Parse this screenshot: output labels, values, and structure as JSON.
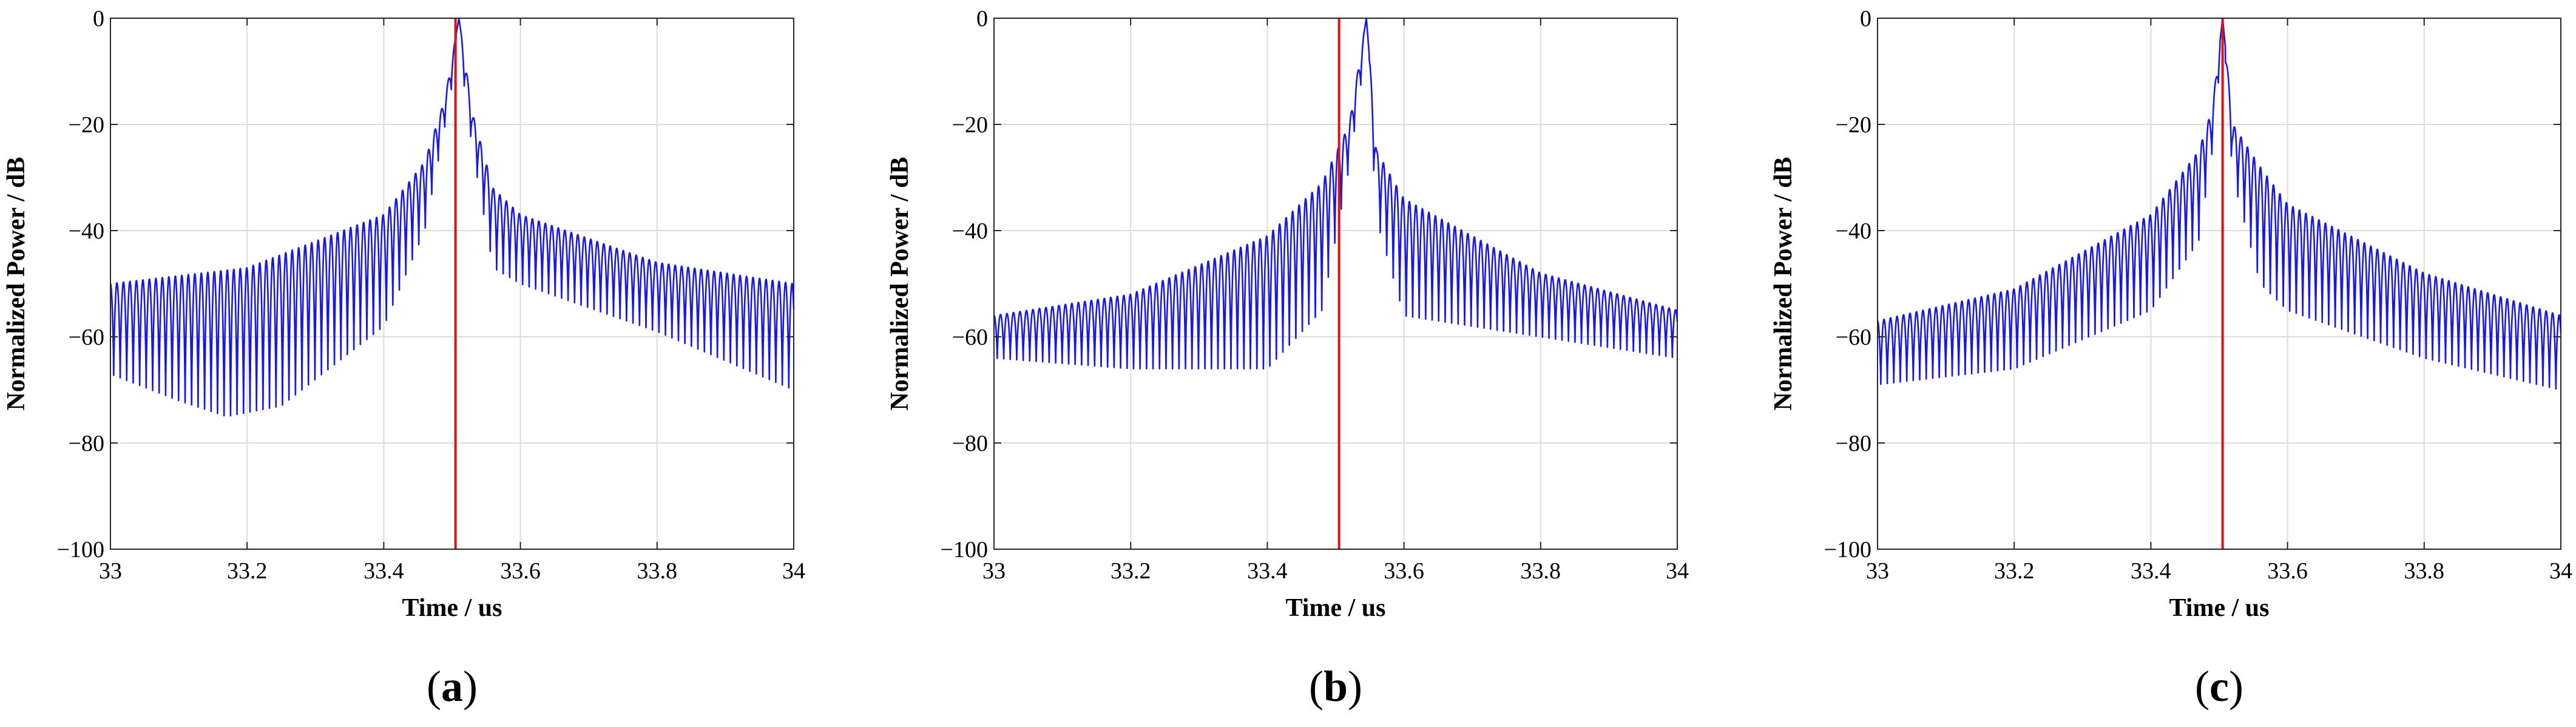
{
  "figure": {
    "panels": [
      {
        "label": "(a)",
        "letter": "a"
      },
      {
        "label": "(b)",
        "letter": "b"
      },
      {
        "label": "(c)",
        "letter": "c"
      }
    ]
  },
  "chart_data": [
    {
      "type": "line",
      "panel": "(a)",
      "xlabel": "Time / us",
      "ylabel": "Normalized Power / dB",
      "xlim": [
        33,
        34
      ],
      "ylim": [
        -100,
        0
      ],
      "xticks": [
        33,
        33.2,
        33.4,
        33.6,
        33.8,
        34
      ],
      "xtick_labels": [
        "33",
        "33.2",
        "33.4",
        "33.6",
        "33.8",
        "34"
      ],
      "yticks": [
        -100,
        -80,
        -60,
        -40,
        -20,
        0
      ],
      "ytick_labels": [
        "−100",
        "−80",
        "−60",
        "−40",
        "−20",
        "0"
      ],
      "grid": true,
      "series": [
        {
          "color": "#1a1adc",
          "style": "oscillating envelope",
          "peak_x": 33.51,
          "upper_envelope": [
            [
              33.0,
              -50
            ],
            [
              33.2,
              -47
            ],
            [
              33.4,
              -37
            ],
            [
              33.46,
              -27
            ],
            [
              33.49,
              -15
            ],
            [
              33.51,
              0
            ],
            [
              33.53,
              -18
            ],
            [
              33.56,
              -32
            ],
            [
              33.6,
              -37
            ],
            [
              33.8,
              -46
            ],
            [
              34.0,
              -50
            ]
          ],
          "lower_envelope": [
            [
              33.0,
              -67
            ],
            [
              33.1,
              -72
            ],
            [
              33.17,
              -75
            ],
            [
              33.25,
              -73
            ],
            [
              33.4,
              -58
            ],
            [
              33.46,
              -40
            ],
            [
              33.49,
              -20
            ],
            [
              33.51,
              -5
            ],
            [
              33.53,
              -25
            ],
            [
              33.56,
              -47
            ],
            [
              33.6,
              -50
            ],
            [
              33.8,
              -59
            ],
            [
              34.0,
              -70
            ]
          ]
        },
        {
          "color": "#e01010",
          "style": "vertical marker",
          "x": 33.505
        }
      ]
    },
    {
      "type": "line",
      "panel": "(b)",
      "xlabel": "Time / us",
      "ylabel": "Normalized Power / dB",
      "xlim": [
        33,
        34
      ],
      "ylim": [
        -100,
        0
      ],
      "xticks": [
        33,
        33.2,
        33.4,
        33.6,
        33.8,
        34
      ],
      "xtick_labels": [
        "33",
        "33.2",
        "33.4",
        "33.6",
        "33.8",
        "34"
      ],
      "yticks": [
        -100,
        -80,
        -60,
        -40,
        -20,
        0
      ],
      "ytick_labels": [
        "−100",
        "−80",
        "−60",
        "−40",
        "−20",
        "0"
      ],
      "grid": true,
      "series": [
        {
          "color": "#1a1adc",
          "style": "oscillating envelope",
          "peak_x": 33.545,
          "upper_envelope": [
            [
              33.0,
              -56
            ],
            [
              33.2,
              -52
            ],
            [
              33.4,
              -41
            ],
            [
              33.48,
              -31
            ],
            [
              33.52,
              -20
            ],
            [
              33.545,
              0
            ],
            [
              33.56,
              -25
            ],
            [
              33.6,
              -34
            ],
            [
              33.8,
              -48
            ],
            [
              34.0,
              -55
            ]
          ],
          "lower_envelope": [
            [
              33.0,
              -64
            ],
            [
              33.2,
              -66
            ],
            [
              33.4,
              -66
            ],
            [
              33.48,
              -55
            ],
            [
              33.52,
              -28
            ],
            [
              33.545,
              -5
            ],
            [
              33.56,
              -38
            ],
            [
              33.6,
              -56
            ],
            [
              33.8,
              -60
            ],
            [
              34.0,
              -64
            ]
          ]
        },
        {
          "color": "#e01010",
          "style": "vertical marker",
          "x": 33.505
        }
      ]
    },
    {
      "type": "line",
      "panel": "(c)",
      "xlabel": "Time / us",
      "ylabel": "Normalized Power / dB",
      "xlim": [
        33,
        34
      ],
      "ylim": [
        -100,
        0
      ],
      "xticks": [
        33,
        33.2,
        33.4,
        33.6,
        33.8,
        34
      ],
      "xtick_labels": [
        "33",
        "33.2",
        "33.4",
        "33.6",
        "33.8",
        "34"
      ],
      "yticks": [
        -100,
        -80,
        -60,
        -40,
        -20,
        0
      ],
      "ytick_labels": [
        "−100",
        "−80",
        "−60",
        "−40",
        "−20",
        "0"
      ],
      "grid": true,
      "series": [
        {
          "color": "#1a1adc",
          "style": "oscillating envelope",
          "peak_x": 33.505,
          "upper_envelope": [
            [
              33.0,
              -57
            ],
            [
              33.2,
              -51
            ],
            [
              33.4,
              -37
            ],
            [
              33.47,
              -25
            ],
            [
              33.49,
              -17
            ],
            [
              33.505,
              0
            ],
            [
              33.52,
              -20
            ],
            [
              33.56,
              -28
            ],
            [
              33.6,
              -35
            ],
            [
              33.8,
              -48
            ],
            [
              34.0,
              -56
            ]
          ],
          "lower_envelope": [
            [
              33.0,
              -69
            ],
            [
              33.2,
              -66
            ],
            [
              33.4,
              -55
            ],
            [
              33.47,
              -42
            ],
            [
              33.49,
              -25
            ],
            [
              33.505,
              -3
            ],
            [
              33.52,
              -30
            ],
            [
              33.56,
              -50
            ],
            [
              33.6,
              -55
            ],
            [
              33.8,
              -64
            ],
            [
              34.0,
              -70
            ]
          ]
        },
        {
          "color": "#e01010",
          "style": "vertical marker",
          "x": 33.505
        }
      ]
    }
  ]
}
